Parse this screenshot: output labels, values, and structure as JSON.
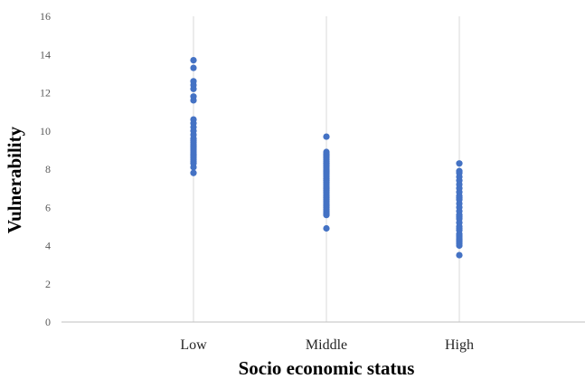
{
  "chart_data": {
    "type": "scatter",
    "title": "",
    "xlabel": "Socio economic status",
    "ylabel": "Vulnerability",
    "categories": [
      "Low",
      "Middle",
      "High"
    ],
    "ylim": [
      0,
      16
    ],
    "yticks": [
      0,
      2,
      4,
      6,
      8,
      10,
      12,
      14,
      16
    ],
    "grid": "vertical lines at categories",
    "colors": {
      "points": "#4472C4",
      "grid": "#D9D9D9",
      "axis": "#BFBFBF"
    },
    "series": [
      {
        "category": "Low",
        "values": [
          13.7,
          13.3,
          12.6,
          12.4,
          12.2,
          11.8,
          11.6,
          10.6,
          10.4,
          10.2,
          10.0,
          9.8,
          9.6,
          9.5,
          9.4,
          9.3,
          9.2,
          9.1,
          9.0,
          8.9,
          8.8,
          8.7,
          8.6,
          8.5,
          8.4,
          8.3,
          8.1,
          7.8
        ]
      },
      {
        "category": "Middle",
        "values": [
          9.7,
          8.9,
          8.8,
          8.7,
          8.6,
          8.5,
          8.4,
          8.3,
          8.2,
          8.1,
          8.0,
          7.9,
          7.8,
          7.7,
          7.6,
          7.5,
          7.4,
          7.3,
          7.2,
          7.1,
          7.0,
          6.9,
          6.8,
          6.7,
          6.6,
          6.5,
          6.4,
          6.3,
          6.2,
          6.1,
          6.0,
          5.9,
          5.8,
          5.7,
          5.6,
          4.9
        ]
      },
      {
        "category": "High",
        "values": [
          8.3,
          7.9,
          7.8,
          7.6,
          7.4,
          7.2,
          7.0,
          6.8,
          6.6,
          6.5,
          6.4,
          6.2,
          6.0,
          5.8,
          5.6,
          5.5,
          5.4,
          5.2,
          5.0,
          4.9,
          4.8,
          4.6,
          4.5,
          4.4,
          4.3,
          4.2,
          4.1,
          4.0,
          3.5
        ]
      }
    ]
  }
}
